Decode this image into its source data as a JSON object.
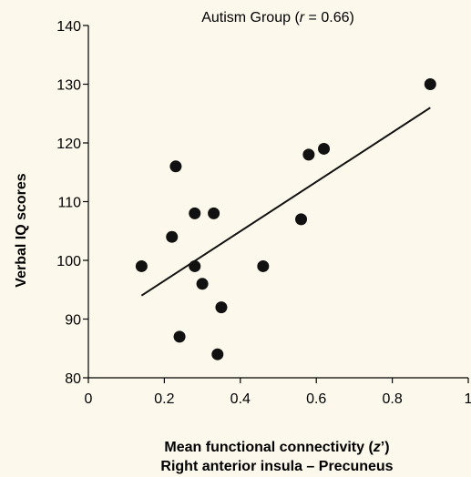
{
  "chart_data": {
    "type": "scatter",
    "title": {
      "prefix": "Autism Group (",
      "r_symbol": "r",
      "suffix": " = 0.66)"
    },
    "ylabel": "Verbal IQ scores",
    "xlabel": {
      "line1_prefix": "Mean functional connectivity (",
      "line1_symbol": "z",
      "line1_suffix": "’)",
      "line2": "Right anterior insula – Precuneus"
    },
    "xlim": [
      0,
      1
    ],
    "ylim": [
      80,
      140
    ],
    "x_ticks": [
      0,
      0.2,
      0.4,
      0.6,
      0.8,
      1
    ],
    "x_tick_labels": [
      "0",
      "0.2",
      "0.4",
      "0.6",
      "0.8",
      "1"
    ],
    "y_ticks": [
      80,
      90,
      100,
      110,
      120,
      130,
      140
    ],
    "y_tick_labels": [
      "80",
      "90",
      "100",
      "110",
      "120",
      "130",
      "140"
    ],
    "grid": false,
    "points": [
      {
        "x": 0.14,
        "y": 99
      },
      {
        "x": 0.22,
        "y": 104
      },
      {
        "x": 0.23,
        "y": 116
      },
      {
        "x": 0.24,
        "y": 87
      },
      {
        "x": 0.28,
        "y": 108
      },
      {
        "x": 0.28,
        "y": 99
      },
      {
        "x": 0.3,
        "y": 96
      },
      {
        "x": 0.33,
        "y": 108
      },
      {
        "x": 0.34,
        "y": 84
      },
      {
        "x": 0.35,
        "y": 92
      },
      {
        "x": 0.46,
        "y": 99
      },
      {
        "x": 0.56,
        "y": 107
      },
      {
        "x": 0.58,
        "y": 118
      },
      {
        "x": 0.62,
        "y": 119
      },
      {
        "x": 0.9,
        "y": 130
      }
    ],
    "trendline": {
      "x": [
        0.14,
        0.9
      ],
      "y": [
        94,
        126
      ]
    },
    "colors": {
      "marker": "#111111",
      "line": "#111111",
      "background": "#fdf8ec"
    }
  }
}
